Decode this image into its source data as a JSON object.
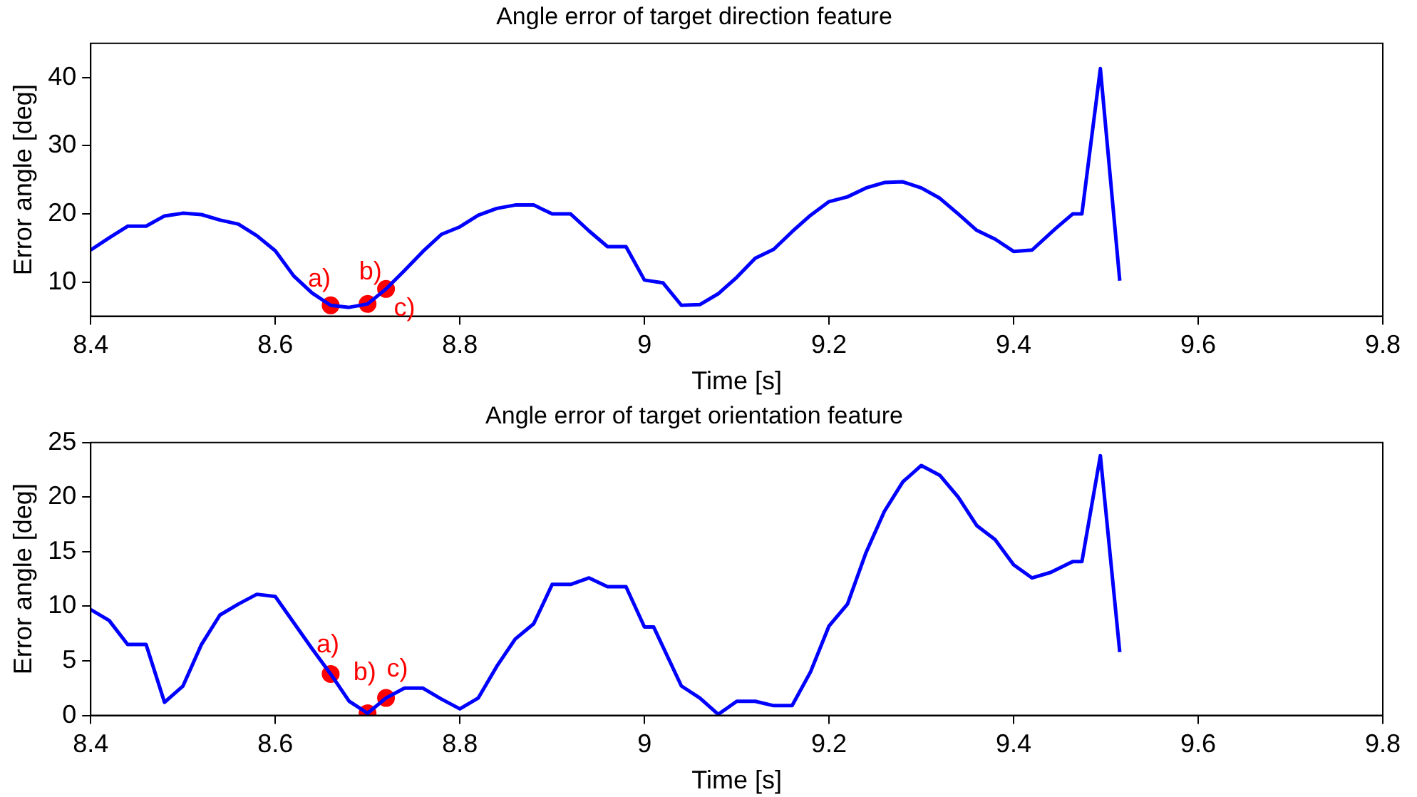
{
  "chart_data": [
    {
      "type": "line",
      "title": "Angle error of target direction feature",
      "xlabel": "Time [s]",
      "ylabel": "Error angle [deg]",
      "xlim": [
        8.4,
        9.8
      ],
      "xticks": [
        8.4,
        8.6,
        8.8,
        9,
        9.2,
        9.4,
        9.6,
        9.8
      ],
      "ylim": [
        5,
        45
      ],
      "yticks": [
        10,
        20,
        30,
        40
      ],
      "grid": false,
      "marker": "none",
      "line_style": "solid",
      "series": [
        {
          "type": "line",
          "color": "#0000ff",
          "x": [
            8.4,
            8.42,
            8.44,
            8.46,
            8.48,
            8.5,
            8.52,
            8.54,
            8.56,
            8.58,
            8.6,
            8.62,
            8.64,
            8.66,
            8.68,
            8.7,
            8.72,
            8.74,
            8.76,
            8.78,
            8.8,
            8.82,
            8.84,
            8.86,
            8.88,
            8.9,
            8.92,
            8.94,
            8.96,
            8.98,
            9,
            9.02,
            9.04,
            9.06,
            9.08,
            9.1,
            9.12,
            9.14,
            9.16,
            9.18,
            9.2,
            9.22,
            9.24,
            9.26,
            9.28,
            9.3,
            9.32,
            9.34,
            9.36,
            9.38,
            9.4,
            9.42,
            9.445,
            9.464,
            9.474,
            9.494,
            9.515
          ],
          "values": [
            14.7,
            16.5,
            18.2,
            18.2,
            19.7,
            20.1,
            19.9,
            19.1,
            18.5,
            16.8,
            14.6,
            10.9,
            8.4,
            6.6,
            6.3,
            6.8,
            9,
            11.7,
            14.5,
            17,
            18.1,
            19.8,
            20.8,
            21.3,
            21.3,
            20,
            20,
            17.5,
            15.2,
            15.2,
            10.3,
            9.9,
            6.6,
            6.7,
            8.3,
            10.7,
            13.5,
            14.8,
            17.4,
            19.8,
            21.8,
            22.5,
            23.8,
            24.6,
            24.7,
            23.8,
            22.3,
            20,
            17.6,
            16.3,
            14.5,
            14.7,
            17.8,
            20,
            20,
            41.3,
            10.2
          ]
        },
        {
          "type": "scatter",
          "color": "#ff0000",
          "marker": "circle",
          "x": [
            8.66,
            8.7,
            8.72
          ],
          "values": [
            6.6,
            6.8,
            9
          ]
        }
      ],
      "annotations": [
        {
          "text": "a)",
          "x": 8.66,
          "y": 6.6
        },
        {
          "text": "b)",
          "x": 8.7,
          "y": 6.8
        },
        {
          "text": "c)",
          "x": 8.72,
          "y": 9
        }
      ]
    },
    {
      "type": "line",
      "title": "Angle error of target orientation feature",
      "xlabel": "Time [s]",
      "ylabel": "Error angle [deg]",
      "xlim": [
        8.4,
        9.8
      ],
      "xticks": [
        8.4,
        8.6,
        8.8,
        9,
        9.2,
        9.4,
        9.6,
        9.8
      ],
      "ylim": [
        0,
        25
      ],
      "yticks": [
        0,
        5,
        10,
        15,
        20,
        25
      ],
      "grid": false,
      "marker": "none",
      "line_style": "solid",
      "series": [
        {
          "type": "line",
          "color": "#0000ff",
          "x": [
            8.4,
            8.42,
            8.44,
            8.46,
            8.48,
            8.5,
            8.52,
            8.54,
            8.56,
            8.58,
            8.6,
            8.62,
            8.64,
            8.66,
            8.68,
            8.7,
            8.72,
            8.74,
            8.76,
            8.78,
            8.8,
            8.82,
            8.84,
            8.86,
            8.88,
            8.9,
            8.92,
            8.94,
            8.96,
            8.98,
            9,
            9.01,
            9.04,
            9.06,
            9.08,
            9.1,
            9.12,
            9.14,
            9.16,
            9.18,
            9.2,
            9.22,
            9.24,
            9.26,
            9.28,
            9.3,
            9.32,
            9.34,
            9.36,
            9.38,
            9.4,
            9.42,
            9.44,
            9.464,
            9.474,
            9.494,
            9.515
          ],
          "values": [
            9.7,
            8.7,
            6.5,
            6.5,
            1.2,
            2.7,
            6.5,
            9.2,
            10.2,
            11.1,
            10.9,
            8.5,
            6.1,
            3.8,
            1.3,
            0.2,
            1.6,
            2.5,
            2.5,
            1.5,
            0.6,
            1.6,
            4.5,
            7,
            8.4,
            12,
            12,
            12.6,
            11.8,
            11.8,
            8.1,
            8.1,
            2.7,
            1.6,
            0.1,
            1.3,
            1.3,
            0.9,
            0.9,
            4,
            8.2,
            10.2,
            14.9,
            18.7,
            21.4,
            22.9,
            22,
            20,
            17.4,
            16.1,
            13.8,
            12.6,
            13.1,
            14.1,
            14.1,
            23.8,
            5.8
          ]
        },
        {
          "type": "scatter",
          "color": "#ff0000",
          "marker": "circle",
          "x": [
            8.66,
            8.7,
            8.72
          ],
          "values": [
            3.8,
            0.2,
            1.6
          ]
        }
      ],
      "annotations": [
        {
          "text": "a)",
          "x": 8.66,
          "y": 3.8
        },
        {
          "text": "b)",
          "x": 8.7,
          "y": 0.2
        },
        {
          "text": "c)",
          "x": 8.72,
          "y": 1.6
        }
      ]
    }
  ]
}
